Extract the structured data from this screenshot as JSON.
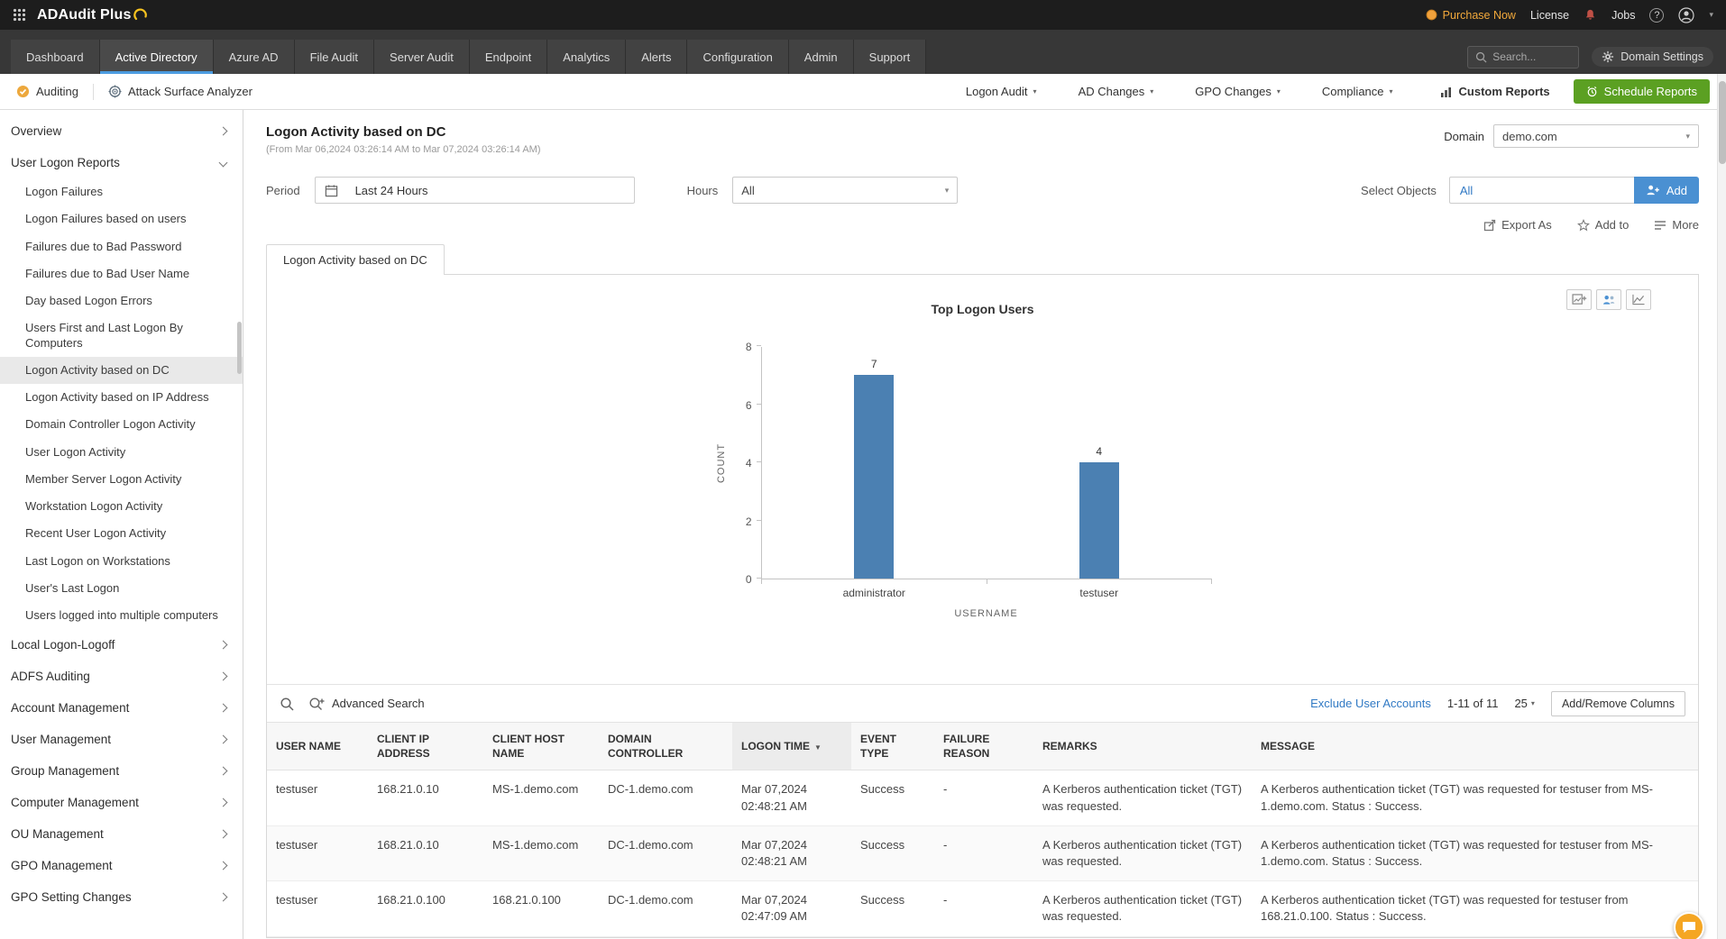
{
  "topbar": {
    "logo": "ADAudit Plus",
    "purchase_now": "Purchase Now",
    "license": "License",
    "jobs": "Jobs",
    "help": "?"
  },
  "nav": {
    "tabs": [
      {
        "label": "Dashboard",
        "active": false
      },
      {
        "label": "Active Directory",
        "active": true
      },
      {
        "label": "Azure AD",
        "active": false
      },
      {
        "label": "File Audit",
        "active": false
      },
      {
        "label": "Server Audit",
        "active": false
      },
      {
        "label": "Endpoint",
        "active": false
      },
      {
        "label": "Analytics",
        "active": false
      },
      {
        "label": "Alerts",
        "active": false
      },
      {
        "label": "Configuration",
        "active": false
      },
      {
        "label": "Admin",
        "active": false
      },
      {
        "label": "Support",
        "active": false
      }
    ],
    "search_placeholder": "Search...",
    "domain_settings": "Domain Settings"
  },
  "subnav": {
    "auditing": "Auditing",
    "attack_surface_analyzer": "Attack Surface Analyzer",
    "menus": [
      {
        "label": "Logon Audit"
      },
      {
        "label": "AD Changes"
      },
      {
        "label": "GPO Changes"
      },
      {
        "label": "Compliance"
      }
    ],
    "custom_reports": "Custom Reports",
    "schedule_reports": "Schedule Reports"
  },
  "sidebar": {
    "sections": [
      {
        "label": "Overview",
        "expanded": false
      },
      {
        "label": "User Logon Reports",
        "expanded": true,
        "items": [
          {
            "label": "Logon Failures"
          },
          {
            "label": "Logon Failures based on users"
          },
          {
            "label": "Failures due to Bad Password"
          },
          {
            "label": "Failures due to Bad User Name"
          },
          {
            "label": "Day based Logon Errors"
          },
          {
            "label": "Users First and Last Logon By Computers"
          },
          {
            "label": "Logon Activity based on DC",
            "selected": true
          },
          {
            "label": "Logon Activity based on IP Address"
          },
          {
            "label": "Domain Controller Logon Activity"
          },
          {
            "label": "User Logon Activity"
          },
          {
            "label": "Member Server Logon Activity"
          },
          {
            "label": "Workstation Logon Activity"
          },
          {
            "label": "Recent User Logon Activity"
          },
          {
            "label": "Last Logon on Workstations"
          },
          {
            "label": "User's Last Logon"
          },
          {
            "label": "Users logged into multiple computers"
          }
        ]
      },
      {
        "label": "Local Logon-Logoff",
        "expanded": false
      },
      {
        "label": "ADFS Auditing",
        "expanded": false
      },
      {
        "label": "Account Management",
        "expanded": false
      },
      {
        "label": "User Management",
        "expanded": false
      },
      {
        "label": "Group Management",
        "expanded": false
      },
      {
        "label": "Computer Management",
        "expanded": false
      },
      {
        "label": "OU Management",
        "expanded": false
      },
      {
        "label": "GPO Management",
        "expanded": false
      },
      {
        "label": "GPO Setting Changes",
        "expanded": false
      }
    ]
  },
  "page": {
    "title": "Logon Activity based on DC",
    "subtitle": "(From Mar 06,2024 03:26:14 AM to Mar 07,2024 03:26:14 AM)",
    "domain_label": "Domain",
    "domain_value": "demo.com"
  },
  "filters": {
    "period_label": "Period",
    "period_value": "Last 24 Hours",
    "hours_label": "Hours",
    "hours_value": "All",
    "select_objects_label": "Select Objects",
    "select_objects_value": "All",
    "add_button": "Add"
  },
  "actions": {
    "export_as": "Export As",
    "add_to": "Add to",
    "more": "More"
  },
  "report_tab": "Logon Activity based on DC",
  "chart_data": {
    "type": "bar",
    "title": "Top Logon Users",
    "categories": [
      "administrator",
      "testuser"
    ],
    "values": [
      7,
      4
    ],
    "xlabel": "USERNAME",
    "ylabel": "COUNT",
    "ylim": [
      0,
      8
    ],
    "yticks": [
      0,
      2,
      4,
      6,
      8
    ],
    "bar_color": "#4b80b2",
    "grid": false,
    "legend": false
  },
  "table": {
    "toolbar": {
      "advanced_search": "Advanced Search",
      "exclude_user_accounts": "Exclude User Accounts",
      "pagination": "1-11 of 11",
      "page_size": "25",
      "add_remove_columns": "Add/Remove Columns"
    },
    "columns": [
      {
        "label": "USER NAME"
      },
      {
        "label": "CLIENT IP ADDRESS"
      },
      {
        "label": "CLIENT HOST NAME"
      },
      {
        "label": "DOMAIN CONTROLLER"
      },
      {
        "label": "LOGON TIME",
        "sorted": true
      },
      {
        "label": "EVENT TYPE"
      },
      {
        "label": "FAILURE REASON"
      },
      {
        "label": "REMARKS"
      },
      {
        "label": "MESSAGE"
      }
    ],
    "rows": [
      [
        "testuser",
        "168.21.0.10",
        "MS-1.demo.com",
        "DC-1.demo.com",
        "Mar 07,2024 02:48:21 AM",
        "Success",
        "-",
        "A Kerberos authentication ticket (TGT) was requested.",
        "A Kerberos authentication ticket (TGT) was requested for testuser from MS-1.demo.com. Status : Success."
      ],
      [
        "testuser",
        "168.21.0.10",
        "MS-1.demo.com",
        "DC-1.demo.com",
        "Mar 07,2024 02:48:21 AM",
        "Success",
        "-",
        "A Kerberos authentication ticket (TGT) was requested.",
        "A Kerberos authentication ticket (TGT) was requested for testuser from MS-1.demo.com. Status : Success."
      ],
      [
        "testuser",
        "168.21.0.100",
        "168.21.0.100",
        "DC-1.demo.com",
        "Mar 07,2024 02:47:09 AM",
        "Success",
        "-",
        "A Kerberos authentication ticket (TGT) was requested.",
        "A Kerberos authentication ticket (TGT) was requested for testuser from 168.21.0.100. Status : Success."
      ]
    ]
  },
  "colors": {
    "accent_blue": "#4a90d2",
    "link_blue": "#3079c4",
    "green_button": "#5ba022",
    "orange": "#f0a13c",
    "bar": "#4b80b2"
  }
}
